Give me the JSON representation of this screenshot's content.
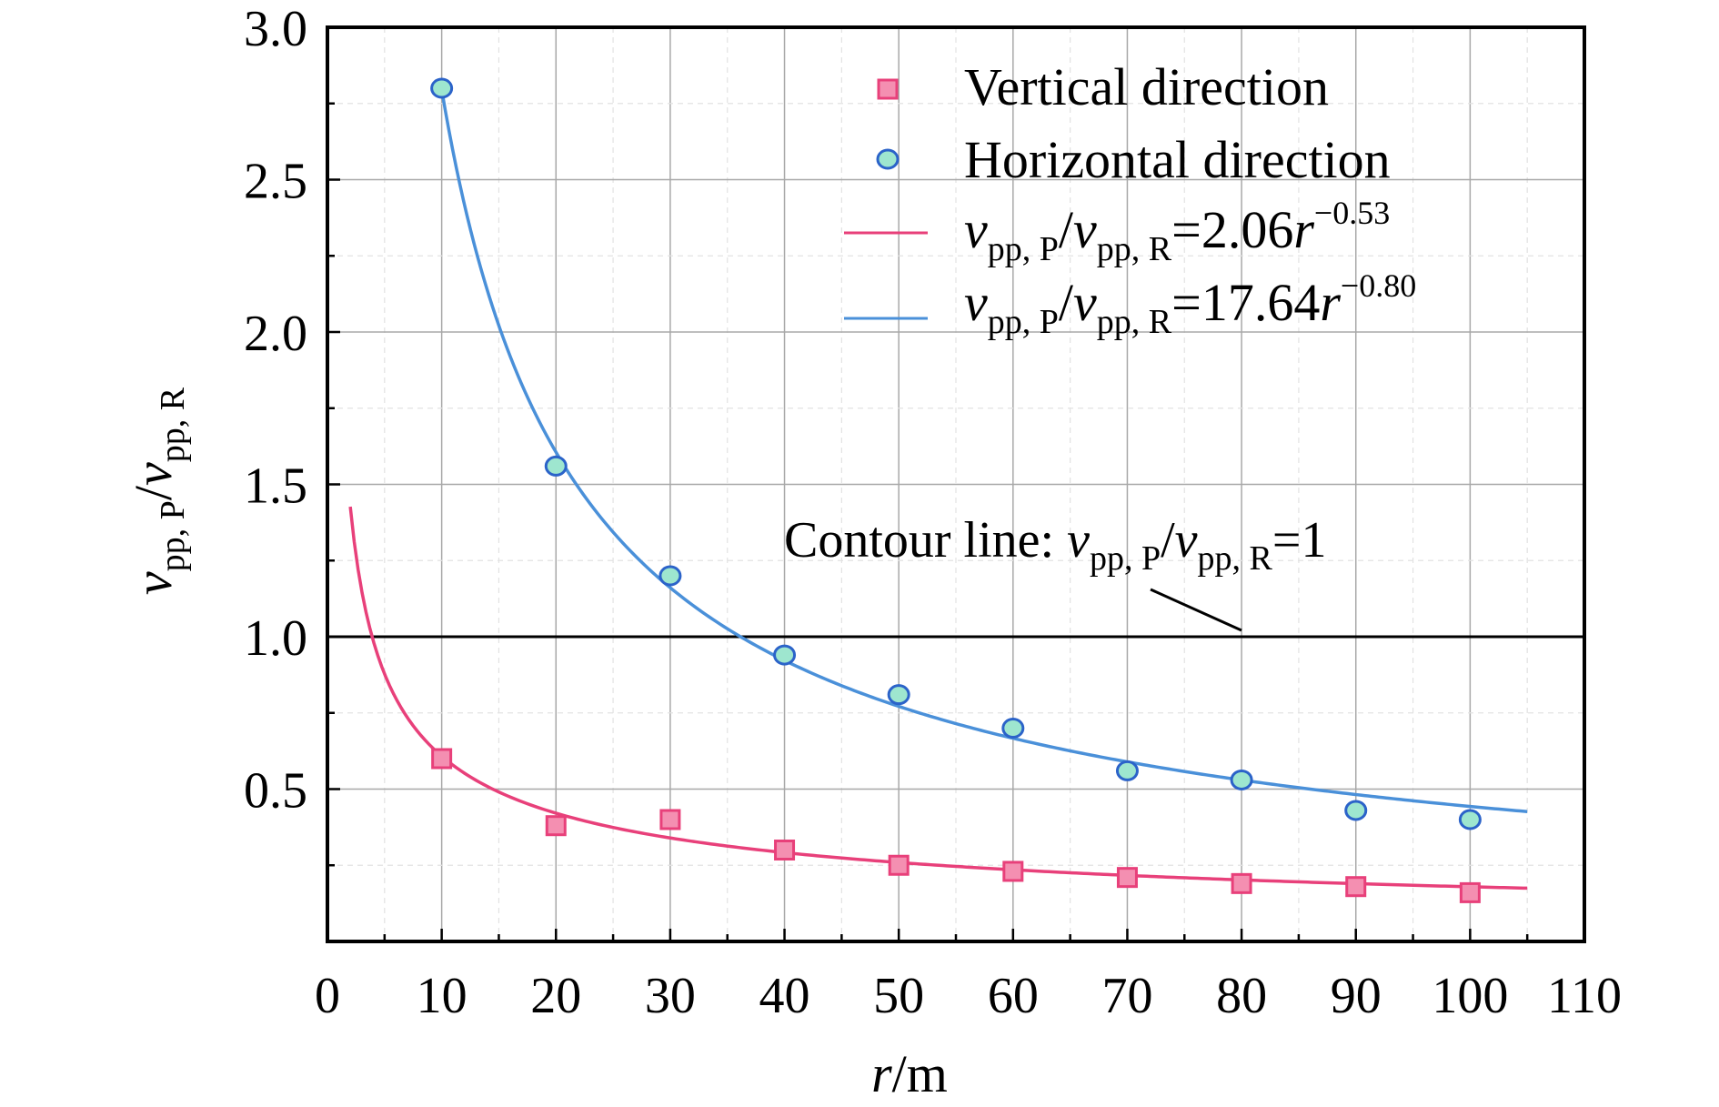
{
  "chart_data": {
    "type": "scatter",
    "xlim": [
      0,
      110
    ],
    "ylim": [
      0,
      3.0
    ],
    "xticks": [
      "0",
      "10",
      "20",
      "30",
      "40",
      "50",
      "60",
      "70",
      "80",
      "90",
      "100",
      "110"
    ],
    "yticks": [
      "0.5",
      "1.0",
      "1.5",
      "2.0",
      "2.5",
      "3.0"
    ],
    "grid": true,
    "legend_position": "top-right",
    "xlabel": {
      "var": "r",
      "unit": "/m"
    },
    "ylabel": {
      "v": "v",
      "sub1": "pp, P",
      "slash": "/",
      "sub2": "pp, R"
    },
    "series": [
      {
        "name": "Vertical direction",
        "marker": "square",
        "color": "#e8407a",
        "fill": "#f48fb1",
        "x": [
          10,
          20,
          30,
          40,
          50,
          60,
          70,
          80,
          90,
          100
        ],
        "y": [
          0.6,
          0.38,
          0.4,
          0.3,
          0.25,
          0.23,
          0.21,
          0.19,
          0.18,
          0.16
        ]
      },
      {
        "name": "Horizontal direction",
        "marker": "circle",
        "color": "#2b63c9",
        "fill": "#9ee6cf",
        "x": [
          10,
          20,
          30,
          40,
          50,
          60,
          70,
          80,
          90,
          100
        ],
        "y": [
          2.8,
          1.56,
          1.2,
          0.94,
          0.81,
          0.7,
          0.56,
          0.53,
          0.43,
          0.4
        ]
      }
    ],
    "fits": [
      {
        "label": {
          "v": "v",
          "sub1": "pp, P",
          "slash": "/",
          "sub2": "pp, R",
          "eq": "=2.06",
          "r": "r",
          "exp": "−0.53"
        },
        "coef": 2.06,
        "exponent": -0.53,
        "x_range": [
          2,
          105
        ],
        "color": "#e8407a"
      },
      {
        "label": {
          "v": "v",
          "sub1": "pp, P",
          "slash": "/",
          "sub2": "pp, R",
          "eq": "=17.64",
          "r": "r",
          "exp": "−0.80"
        },
        "coef": 17.64,
        "exponent": -0.8,
        "x_range": [
          10,
          105
        ],
        "color": "#4a90d9"
      }
    ],
    "reference_line": {
      "y": 1.0,
      "color": "#000000",
      "label": {
        "prefix": "Contour line: ",
        "v": "v",
        "sub1": "pp, P",
        "slash": "/",
        "sub2": "pp, R",
        "eq": "=1"
      }
    }
  }
}
